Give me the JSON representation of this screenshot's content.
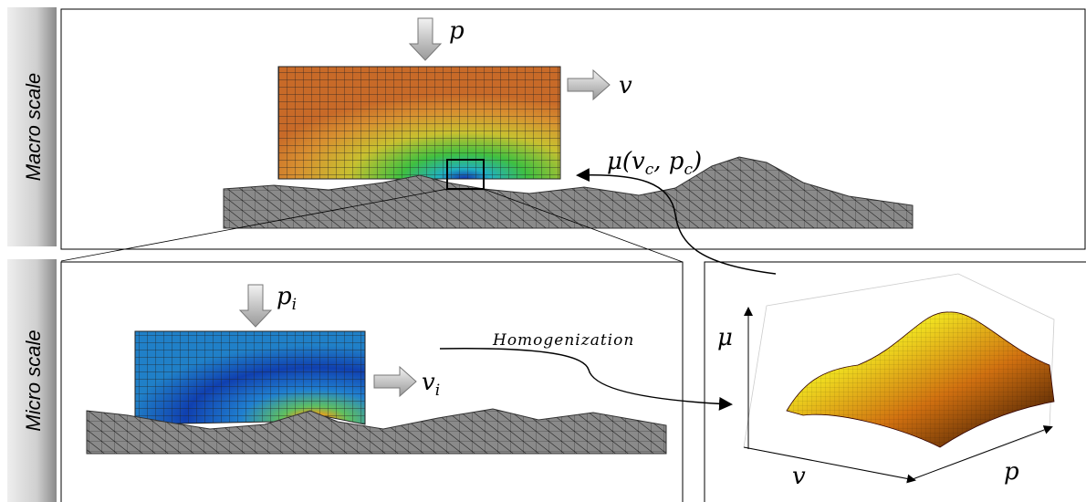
{
  "side_labels": {
    "macro": "Macro scale",
    "micro": "Micro scale"
  },
  "macro": {
    "pressure": "p",
    "velocity": "v",
    "friction": {
      "parts": [
        "μ(v",
        "c",
        ", p",
        "c",
        ")"
      ]
    }
  },
  "micro": {
    "pressure": {
      "base": "p",
      "sub": "i"
    },
    "velocity": {
      "base": "v",
      "sub": "i"
    },
    "process": "Homogenization"
  },
  "plot": {
    "y_axis": "μ",
    "x_axis": "v",
    "z_axis": "p"
  }
}
